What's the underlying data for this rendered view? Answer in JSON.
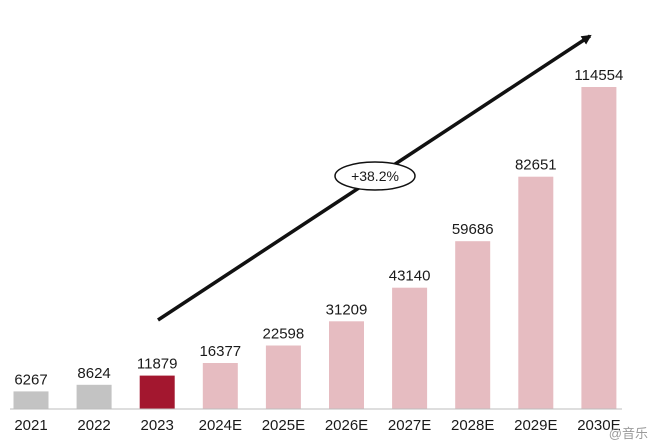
{
  "chart_data": {
    "type": "bar",
    "categories": [
      "2021",
      "2022",
      "2023",
      "2024E",
      "2025E",
      "2026E",
      "2027E",
      "2028E",
      "2029E",
      "2030E"
    ],
    "values": [
      6267,
      8624,
      11879,
      16377,
      22598,
      31209,
      43140,
      59686,
      82651,
      114554
    ],
    "ylim": [
      0,
      114554
    ],
    "grid": false,
    "legend": "none",
    "colors": {
      "actual_gray": "#c3c3c3",
      "current_year": "#a3172f",
      "forecast": "#e6bcc1",
      "baseline": "#bdbdbd",
      "arrow": "#111111"
    },
    "bar_colors": [
      "#c3c3c3",
      "#c3c3c3",
      "#a3172f",
      "#e6bcc1",
      "#e6bcc1",
      "#e6bcc1",
      "#e6bcc1",
      "#e6bcc1",
      "#e6bcc1",
      "#e6bcc1"
    ],
    "annotation": {
      "text": "+38.2%",
      "shape": "ellipse",
      "on": "trend-arrow"
    }
  },
  "watermark": "@音乐"
}
